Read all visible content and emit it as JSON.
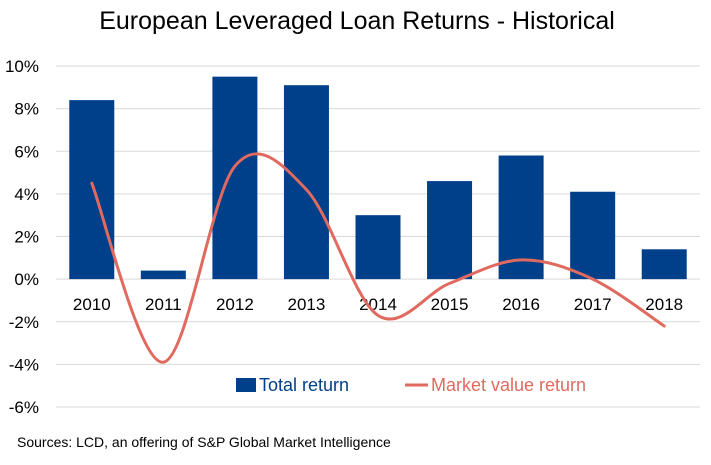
{
  "chart_data": {
    "type": "bar",
    "title": "European Leveraged Loan Returns - Historical",
    "categories": [
      "2010",
      "2011",
      "2012",
      "2013",
      "2014",
      "2015",
      "2016",
      "2017",
      "2018"
    ],
    "series": [
      {
        "name": "Total return",
        "type": "bar",
        "color": "#003f8a",
        "values": [
          8.4,
          0.4,
          9.5,
          9.1,
          3.0,
          4.6,
          5.8,
          4.1,
          1.4
        ]
      },
      {
        "name": "Market value return",
        "type": "line",
        "color": "#e06a5f",
        "values": [
          4.5,
          -3.9,
          5.3,
          4.2,
          -1.7,
          -0.2,
          0.9,
          0.0,
          -2.2
        ]
      }
    ],
    "ylim": [
      -6,
      10
    ],
    "yticks": [
      -6,
      -4,
      -2,
      0,
      2,
      4,
      6,
      8,
      10
    ],
    "ytick_labels": [
      "-6%",
      "-4%",
      "-2%",
      "0%",
      "2%",
      "4%",
      "6%",
      "8%",
      "10%"
    ],
    "grid": true,
    "legend_position": "bottom-center",
    "source": "Sources: LCD, an offering of S&P Global Market Intelligence"
  }
}
